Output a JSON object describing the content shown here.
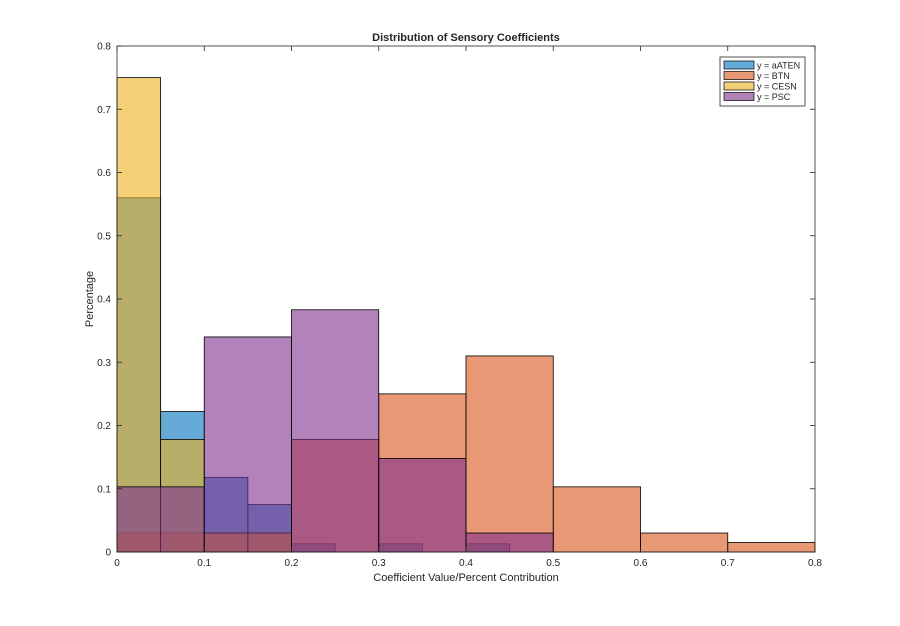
{
  "chart_data": {
    "type": "histogram",
    "title": "Distribution of Sensory Coefficients",
    "xlabel": "Coefficient Value/Percent Contribution",
    "ylabel": "Percentage",
    "xlim": [
      0,
      0.8
    ],
    "ylim": [
      0,
      0.8
    ],
    "xticks": [
      "0",
      "0.1",
      "0.2",
      "0.3",
      "0.4",
      "0.5",
      "0.6",
      "0.7",
      "0.8"
    ],
    "yticks": [
      "0",
      "0.1",
      "0.2",
      "0.3",
      "0.4",
      "0.5",
      "0.6",
      "0.7",
      "0.8"
    ],
    "grid": false,
    "legend_position": "top-right",
    "series": [
      {
        "name": "y = aATEN",
        "color": "#0072BD",
        "bins": [
          {
            "x0": 0.0,
            "x1": 0.05,
            "value": 0.56
          },
          {
            "x0": 0.05,
            "x1": 0.1,
            "value": 0.222
          },
          {
            "x0": 0.1,
            "x1": 0.15,
            "value": 0.118
          },
          {
            "x0": 0.15,
            "x1": 0.2,
            "value": 0.075
          },
          {
            "x0": 0.2,
            "x1": 0.25,
            "value": 0.013
          },
          {
            "x0": 0.3,
            "x1": 0.35,
            "value": 0.013
          },
          {
            "x0": 0.4,
            "x1": 0.45,
            "value": 0.013
          }
        ]
      },
      {
        "name": "y = BTN",
        "color": "#D95319",
        "bins": [
          {
            "x0": 0.0,
            "x1": 0.1,
            "value": 0.03
          },
          {
            "x0": 0.1,
            "x1": 0.2,
            "value": 0.03
          },
          {
            "x0": 0.2,
            "x1": 0.3,
            "value": 0.178
          },
          {
            "x0": 0.3,
            "x1": 0.4,
            "value": 0.25
          },
          {
            "x0": 0.4,
            "x1": 0.5,
            "value": 0.31
          },
          {
            "x0": 0.5,
            "x1": 0.6,
            "value": 0.103
          },
          {
            "x0": 0.6,
            "x1": 0.7,
            "value": 0.03
          },
          {
            "x0": 0.7,
            "x1": 0.8,
            "value": 0.015
          }
        ]
      },
      {
        "name": "y = CESN",
        "color": "#EDB120",
        "bins": [
          {
            "x0": 0.0,
            "x1": 0.05,
            "value": 0.75
          },
          {
            "x0": 0.05,
            "x1": 0.1,
            "value": 0.178
          },
          {
            "x0": 0.1,
            "x1": 0.15,
            "value": 0.03
          },
          {
            "x0": 0.15,
            "x1": 0.2,
            "value": 0.03
          }
        ]
      },
      {
        "name": "y = PSC",
        "color": "#7E2F8E",
        "bins": [
          {
            "x0": 0.0,
            "x1": 0.1,
            "value": 0.103
          },
          {
            "x0": 0.1,
            "x1": 0.2,
            "value": 0.34
          },
          {
            "x0": 0.2,
            "x1": 0.3,
            "value": 0.383
          },
          {
            "x0": 0.3,
            "x1": 0.4,
            "value": 0.148
          },
          {
            "x0": 0.4,
            "x1": 0.5,
            "value": 0.03
          }
        ]
      }
    ]
  }
}
